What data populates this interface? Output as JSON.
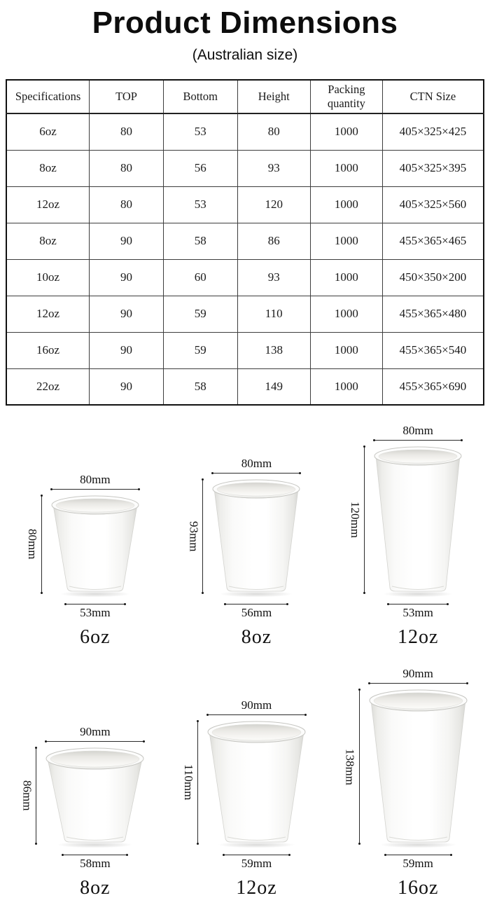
{
  "title": "Product Dimensions",
  "subtitle": "(Australian size)",
  "spec_table": {
    "columns": [
      "Specifications",
      "TOP",
      "Bottom",
      "Height",
      "Packing quantity",
      "CTN Size"
    ],
    "rows": [
      [
        "6oz",
        "80",
        "53",
        "80",
        "1000",
        "405×325×425"
      ],
      [
        "8oz",
        "80",
        "56",
        "93",
        "1000",
        "405×325×395"
      ],
      [
        "12oz",
        "80",
        "53",
        "120",
        "1000",
        "405×325×560"
      ],
      [
        "8oz",
        "90",
        "58",
        "86",
        "1000",
        "455×365×465"
      ],
      [
        "10oz",
        "90",
        "60",
        "93",
        "1000",
        "450×350×200"
      ],
      [
        "12oz",
        "90",
        "59",
        "110",
        "1000",
        "455×365×480"
      ],
      [
        "16oz",
        "90",
        "59",
        "138",
        "1000",
        "455×365×540"
      ],
      [
        "22oz",
        "90",
        "58",
        "149",
        "1000",
        "455×365×690"
      ]
    ]
  },
  "cup_diagrams": [
    {
      "label": "6oz",
      "top": "80mm",
      "height": "80mm",
      "bottom": "53mm"
    },
    {
      "label": "8oz",
      "top": "80mm",
      "height": "93mm",
      "bottom": "56mm"
    },
    {
      "label": "12oz",
      "top": "80mm",
      "height": "120mm",
      "bottom": "53mm"
    },
    {
      "label": "8oz",
      "top": "90mm",
      "height": "86mm",
      "bottom": "58mm"
    },
    {
      "label": "12oz",
      "top": "90mm",
      "height": "110mm",
      "bottom": "59mm"
    },
    {
      "label": "16oz",
      "top": "90mm",
      "height": "138mm",
      "bottom": "59mm"
    }
  ]
}
